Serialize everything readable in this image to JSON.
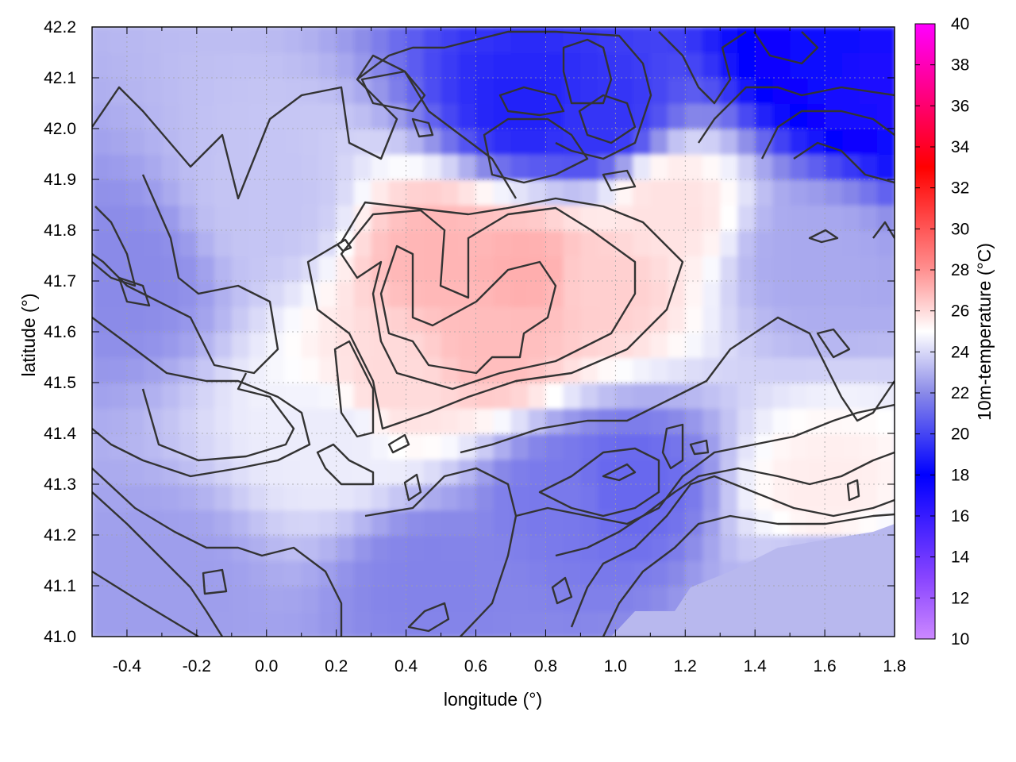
{
  "chart_data": {
    "type": "heatmap",
    "xlabel": "longitude (°)",
    "ylabel": "latitude (°)",
    "colorbar_label": "10m-temperature (°C)",
    "xlim": [
      -0.5,
      1.8
    ],
    "ylim": [
      41.0,
      42.2
    ],
    "x_ticks": [
      "-0.4",
      "-0.2",
      "0.0",
      "0.2",
      "0.4",
      "0.6",
      "0.8",
      "1.0",
      "1.2",
      "1.4",
      "1.6",
      "1.8"
    ],
    "y_ticks": [
      "41.0",
      "41.1",
      "41.2",
      "41.3",
      "41.4",
      "41.5",
      "41.6",
      "41.7",
      "41.8",
      "41.9",
      "42.0",
      "42.1",
      "42.2"
    ],
    "colorbar_range": [
      10,
      40
    ],
    "colorbar_ticks": [
      "10",
      "12",
      "14",
      "16",
      "18",
      "20",
      "22",
      "24",
      "26",
      "28",
      "30",
      "32",
      "34",
      "36",
      "38",
      "40"
    ],
    "colorscale": [
      {
        "value": 10,
        "color": "#cc88ff"
      },
      {
        "value": 13,
        "color": "#8844ff"
      },
      {
        "value": 18,
        "color": "#0000ff"
      },
      {
        "value": 22,
        "color": "#8a8ae8"
      },
      {
        "value": 25,
        "color": "#ffffff"
      },
      {
        "value": 28,
        "color": "#ff9090"
      },
      {
        "value": 33,
        "color": "#ff0000"
      },
      {
        "value": 40,
        "color": "#ff00ff"
      }
    ],
    "contour_color": "#333333",
    "grid": true,
    "field_summary": [
      {
        "lon": 0.5,
        "lat": 41.75,
        "temp": 27.0
      },
      {
        "lon": 0.75,
        "lat": 41.72,
        "temp": 27.2
      },
      {
        "lon": 0.65,
        "lat": 41.58,
        "temp": 26.8
      },
      {
        "lon": 0.95,
        "lat": 41.7,
        "temp": 26.3
      },
      {
        "lon": 1.15,
        "lat": 41.85,
        "temp": 25.8
      },
      {
        "lon": 0.35,
        "lat": 41.5,
        "temp": 26.0
      },
      {
        "lon": 1.6,
        "lat": 42.15,
        "temp": 17.5
      },
      {
        "lon": 1.75,
        "lat": 42.1,
        "temp": 17.0
      },
      {
        "lon": 0.75,
        "lat": 42.05,
        "temp": 19.0
      },
      {
        "lon": 0.95,
        "lat": 42.02,
        "temp": 19.5
      },
      {
        "lon": 1.02,
        "lat": 41.3,
        "temp": 21.0
      },
      {
        "lon": 0.85,
        "lat": 41.28,
        "temp": 21.5
      },
      {
        "lon": -0.4,
        "lat": 41.72,
        "temp": 22.0
      },
      {
        "lon": -0.3,
        "lat": 41.1,
        "temp": 22.5
      },
      {
        "lon": 0.48,
        "lat": 41.12,
        "temp": 21.8
      },
      {
        "lon": 1.6,
        "lat": 41.1,
        "temp": 22.8
      },
      {
        "lon": 1.55,
        "lat": 41.75,
        "temp": 22.8
      },
      {
        "lon": 1.6,
        "lat": 41.28,
        "temp": 25.5
      },
      {
        "lon": 0.0,
        "lat": 41.85,
        "temp": 23.5
      },
      {
        "lon": 0.2,
        "lat": 41.4,
        "temp": 24.5
      }
    ]
  }
}
